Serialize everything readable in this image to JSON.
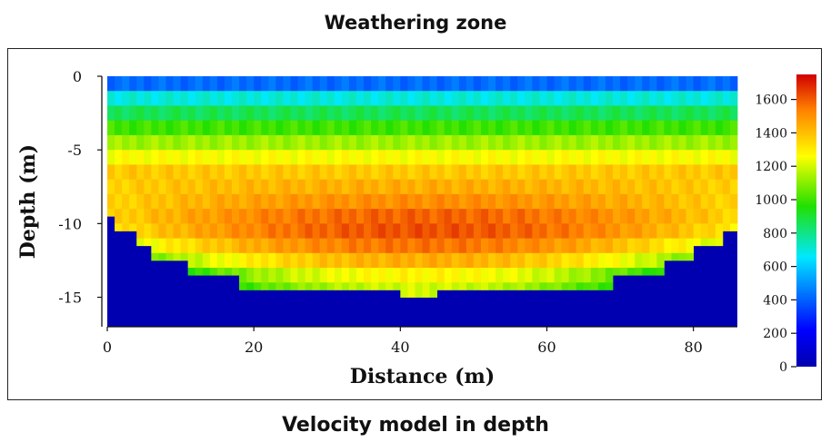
{
  "figure": {
    "top_title": "Weathering zone",
    "bottom_title": "Velocity model in depth"
  },
  "chart_data": {
    "type": "heatmap",
    "title": "Weathering zone",
    "subtitle": "Velocity model in depth",
    "xlabel": "Distance (m)",
    "ylabel": "Depth (m)",
    "xlim": [
      0,
      86
    ],
    "ylim": [
      -17,
      0
    ],
    "x_ticks": [
      0,
      20,
      40,
      60,
      80
    ],
    "y_ticks": [
      0,
      -5,
      -10,
      -15
    ],
    "x_tick_labels": [
      "0",
      "20",
      "40",
      "60",
      "80"
    ],
    "y_tick_labels": [
      "0",
      "-5",
      "-10",
      "-15"
    ],
    "colorbar": {
      "range": [
        0,
        1750
      ],
      "ticks": [
        0,
        200,
        400,
        600,
        800,
        1000,
        1200,
        1400,
        1600
      ],
      "tick_labels": [
        "0",
        "200",
        "400",
        "600",
        "800",
        "1000",
        "1200",
        "1400",
        "1600"
      ],
      "colormap": "jet"
    },
    "cell_width_m": 1,
    "cell_height_m": 1,
    "layers_by_depth": [
      {
        "depth_top": 0,
        "depth_bottom": -1,
        "velocity": 420
      },
      {
        "depth_top": -1,
        "depth_bottom": -2,
        "velocity": 700
      },
      {
        "depth_top": -2,
        "depth_bottom": -3,
        "velocity": 860
      },
      {
        "depth_top": -3,
        "depth_bottom": -4,
        "velocity": 1000
      },
      {
        "depth_top": -4,
        "depth_bottom": -5,
        "velocity": 1130
      },
      {
        "depth_top": -5,
        "depth_bottom": -6,
        "velocity": 1260
      },
      {
        "depth_top": -6,
        "depth_bottom": -7,
        "velocity": 1380
      },
      {
        "depth_top": -7,
        "depth_bottom": -8,
        "velocity": 1440
      },
      {
        "depth_top": -8,
        "depth_bottom": -9,
        "velocity": 1510
      },
      {
        "depth_top": -9,
        "depth_bottom": -10,
        "velocity": 1590
      },
      {
        "depth_top": -10,
        "depth_bottom": -11,
        "velocity": 1620
      },
      {
        "depth_top": -11,
        "depth_bottom": -12,
        "velocity": 1560
      },
      {
        "depth_top": -12,
        "depth_bottom": -13,
        "velocity": 1440
      },
      {
        "depth_top": -13,
        "depth_bottom": -14,
        "velocity": 1280
      },
      {
        "depth_top": -14,
        "depth_bottom": -15,
        "velocity": 1200
      }
    ],
    "basement_velocity": 0,
    "basement_boundary_depth_m": [
      {
        "x_from": 0,
        "x_to": 1,
        "depth": -9.5
      },
      {
        "x_from": 1,
        "x_to": 4,
        "depth": -10.5
      },
      {
        "x_from": 4,
        "x_to": 6,
        "depth": -11.5
      },
      {
        "x_from": 6,
        "x_to": 11,
        "depth": -12.5
      },
      {
        "x_from": 11,
        "x_to": 18,
        "depth": -13.5
      },
      {
        "x_from": 18,
        "x_to": 40,
        "depth": -14.5
      },
      {
        "x_from": 40,
        "x_to": 45,
        "depth": -15.5
      },
      {
        "x_from": 45,
        "x_to": 69,
        "depth": -14.5
      },
      {
        "x_from": 69,
        "x_to": 76,
        "depth": -13.5
      },
      {
        "x_from": 76,
        "x_to": 80,
        "depth": -12.5
      },
      {
        "x_from": 80,
        "x_to": 84,
        "depth": -11.5
      },
      {
        "x_from": 84,
        "x_to": 86,
        "depth": -10.5
      }
    ]
  }
}
